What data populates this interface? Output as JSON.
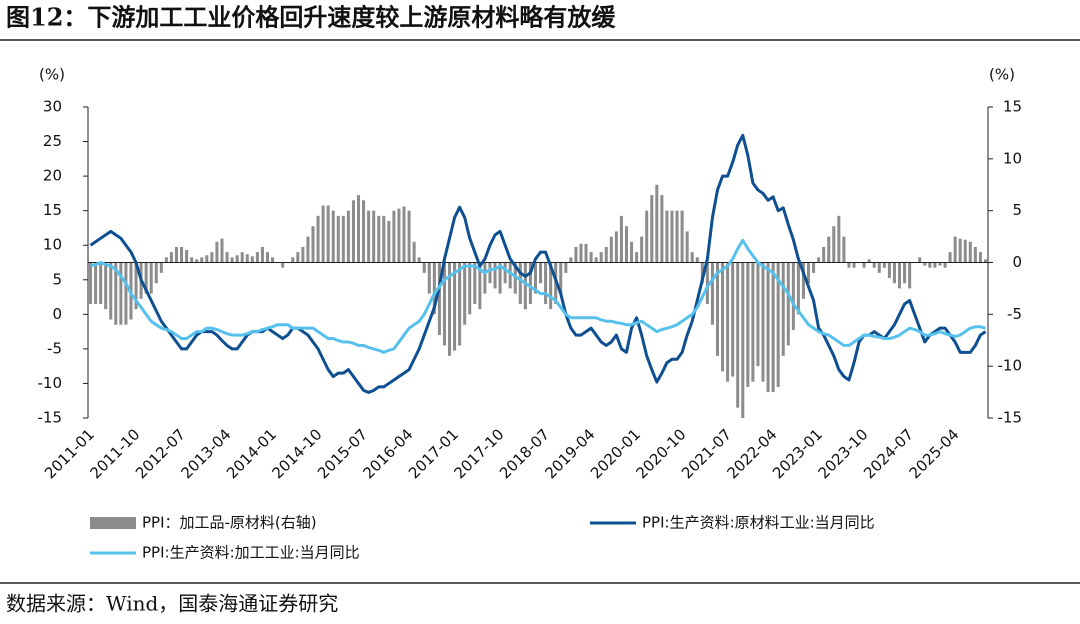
{
  "chart_data": {
    "type": "combo",
    "title": "图12：下游加工工业价格回升速度较上游原材料略有放缓",
    "ylabel": "(%)",
    "y2label": "(%)",
    "source": "数据来源：Wind，国泰海通证券研究",
    "categories": [
      "2011-01",
      null,
      null,
      null,
      null,
      null,
      null,
      null,
      null,
      "2011-10",
      null,
      null,
      null,
      null,
      null,
      null,
      null,
      null,
      "2012-07",
      null,
      null,
      null,
      null,
      null,
      null,
      null,
      null,
      "2013-04",
      null,
      null,
      null,
      null,
      null,
      null,
      null,
      null,
      "2014-01",
      null,
      null,
      null,
      null,
      null,
      null,
      null,
      null,
      "2014-10",
      null,
      null,
      null,
      null,
      null,
      null,
      null,
      null,
      "2015-07",
      null,
      null,
      null,
      null,
      null,
      null,
      null,
      null,
      "2016-04",
      null,
      null,
      null,
      null,
      null,
      null,
      null,
      null,
      "2017-01",
      null,
      null,
      null,
      null,
      null,
      null,
      null,
      null,
      "2017-10",
      null,
      null,
      null,
      null,
      null,
      null,
      null,
      null,
      "2018-07",
      null,
      null,
      null,
      null,
      null,
      null,
      null,
      null,
      "2019-04",
      null,
      null,
      null,
      null,
      null,
      null,
      null,
      null,
      "2020-01",
      null,
      null,
      null,
      null,
      null,
      null,
      null,
      null,
      "2020-10",
      null,
      null,
      null,
      null,
      null,
      null,
      null,
      null,
      "2021-07",
      null,
      null,
      null,
      null,
      null,
      null,
      null,
      null,
      "2022-04",
      null,
      null,
      null,
      null,
      null,
      null,
      null,
      null,
      "2023-01",
      null,
      null,
      null,
      null,
      null,
      null,
      null,
      null,
      "2023-10",
      null,
      null,
      null,
      null,
      null,
      null,
      null,
      null,
      "2024-07",
      null,
      null,
      null,
      null,
      null,
      null,
      null,
      null,
      "2025-04",
      null,
      null,
      null,
      null,
      null,
      null
    ],
    "ylim": [
      -15,
      30
    ],
    "yticks": [
      30,
      25,
      20,
      15,
      10,
      5,
      0,
      -5,
      -10,
      -15
    ],
    "y2lim": [
      -15,
      15
    ],
    "y2ticks": [
      15,
      10,
      5,
      0,
      -5,
      -10,
      -15
    ],
    "legend": "bottom",
    "series": [
      {
        "name": "PPI：加工品-原材料(右轴)",
        "type": "bar",
        "axis": "y2",
        "color": "#8c8c8c",
        "values": [
          -4,
          -4,
          -4,
          -4.5,
          -5.5,
          -6,
          -6,
          -6,
          -5.5,
          -4.5,
          -3.5,
          -3,
          -3,
          -2,
          -1,
          0.5,
          1,
          1.5,
          1.5,
          1.2,
          0.5,
          0.3,
          0.5,
          0.7,
          1,
          2,
          2.3,
          1,
          0.5,
          0.7,
          1,
          0.8,
          0.6,
          1,
          1.5,
          1,
          0.5,
          0,
          -0.5,
          0,
          0.5,
          1,
          1.5,
          2.5,
          3.5,
          4.5,
          5.5,
          5.5,
          5,
          4.5,
          4.5,
          5,
          6,
          6.5,
          6,
          5,
          5,
          4.5,
          4.5,
          4,
          5,
          5.2,
          5.4,
          5,
          2,
          0.5,
          -1,
          -3,
          -5,
          -7,
          -8,
          -9,
          -8.5,
          -8,
          -6,
          -5,
          -4,
          -4.5,
          -3,
          -2,
          -2.5,
          -3,
          -2,
          -2.5,
          -3,
          -4,
          -4.5,
          -4,
          -3,
          -2,
          -4,
          -4.5,
          -4,
          -3,
          -1,
          0.5,
          1.5,
          1.8,
          1.8,
          1,
          0.5,
          1,
          1.5,
          2.5,
          3,
          4.5,
          3.5,
          2,
          1,
          2.5,
          5,
          6.5,
          7.5,
          6.5,
          5,
          5,
          5,
          5,
          3,
          1,
          0.5,
          -2,
          -4,
          -6,
          -9,
          -10.5,
          -11.5,
          -11,
          -14,
          -15,
          -12,
          -11.5,
          -10,
          -11.5,
          -12.5,
          -12.5,
          -12,
          -9,
          -8,
          -6.5,
          -5,
          -3.5,
          -2,
          -1,
          0.5,
          1.5,
          2.5,
          3.5,
          4.5,
          2.5,
          -0.5,
          -0.5,
          0,
          -0.5,
          0.3,
          -0.5,
          -1,
          -0.5,
          -1.5,
          -2,
          -2.5,
          -2,
          -2.5,
          0,
          0.5,
          -0.3,
          -0.5,
          -0.5,
          -0.3,
          -0.5,
          1,
          2.5,
          2.3,
          2.2,
          2,
          1.5,
          1,
          0.3
        ]
      },
      {
        "name": "PPI:生产资料:原材料工业:当月同比",
        "type": "line",
        "color": "#0d4f91",
        "values": [
          10,
          10.5,
          11,
          11.5,
          12,
          11.5,
          11,
          10,
          9,
          7.5,
          5,
          3.5,
          2,
          0.5,
          -1,
          -2,
          -3,
          -4,
          -5,
          -5,
          -4,
          -3,
          -2.5,
          -2.5,
          -2.5,
          -3,
          -3.8,
          -4.5,
          -5,
          -5,
          -4,
          -3,
          -2.5,
          -2.5,
          -2.5,
          -2,
          -2.5,
          -3,
          -3.5,
          -3,
          -2,
          -2,
          -2.5,
          -3,
          -4,
          -5,
          -6.5,
          -8,
          -9,
          -8.5,
          -8.5,
          -8,
          -9,
          -10,
          -11,
          -11.3,
          -11,
          -10.5,
          -10.5,
          -10,
          -9.5,
          -9,
          -8.5,
          -8,
          -6.5,
          -5,
          -3,
          -1,
          1,
          4,
          8,
          11,
          14,
          15.5,
          14,
          11,
          9,
          7,
          8,
          10,
          11.5,
          12,
          10,
          8,
          7,
          6,
          5.5,
          6,
          8,
          9,
          9,
          7,
          5,
          3,
          0,
          -2,
          -3,
          -3,
          -2.5,
          -2,
          -3,
          -4,
          -4.5,
          -4,
          -3,
          -5,
          -5.5,
          -2,
          -0.5,
          -3,
          -6,
          -8,
          -9.8,
          -8.5,
          -7,
          -6.5,
          -6.5,
          -5.5,
          -3,
          -1,
          2,
          5,
          8,
          14,
          18,
          20,
          20,
          22,
          24.5,
          25.9,
          23,
          19,
          18,
          17.5,
          16.5,
          17,
          15,
          15.4,
          13,
          10.8,
          8,
          6,
          4,
          2,
          -2,
          -3,
          -4.5,
          -6,
          -8,
          -9,
          -9.5,
          -7,
          -4,
          -3,
          -3,
          -2.5,
          -3,
          -3.5,
          -2.5,
          -1.5,
          0,
          1.5,
          2,
          0,
          -2,
          -4,
          -3,
          -2.5,
          -2,
          -2,
          -3,
          -4,
          -5.5,
          -5.5,
          -5.5,
          -4.5,
          -3,
          -2.5
        ]
      },
      {
        "name": "PPI:生产资料:加工工业:当月同比",
        "type": "line",
        "color": "#56c1ec",
        "values": [
          7,
          7.2,
          7.5,
          7.2,
          7,
          6.5,
          5.5,
          4.5,
          3,
          2,
          1,
          0,
          -1,
          -1.5,
          -2,
          -2.2,
          -2.5,
          -3,
          -3.5,
          -3.5,
          -3,
          -2.5,
          -2.5,
          -2,
          -2,
          -2.2,
          -2.5,
          -2.8,
          -3,
          -3,
          -3,
          -2.8,
          -2.5,
          -2.5,
          -2.2,
          -2,
          -1.8,
          -1.5,
          -1.5,
          -1.5,
          -2,
          -2,
          -2,
          -2,
          -2,
          -2.5,
          -3,
          -3.5,
          -3.5,
          -3.8,
          -4,
          -4,
          -4.2,
          -4.5,
          -4.5,
          -4.8,
          -5,
          -5.2,
          -5.5,
          -5.2,
          -5,
          -4,
          -3,
          -2,
          -1.5,
          -1,
          0,
          1.5,
          3,
          4,
          5,
          5.5,
          6,
          6.5,
          7,
          7,
          7,
          6.5,
          6,
          6.5,
          6.5,
          7,
          6.5,
          6,
          5.5,
          5,
          4.5,
          4,
          3.5,
          3,
          3,
          2.5,
          2,
          1,
          0,
          -0.5,
          -0.5,
          -0.5,
          -0.5,
          -0.5,
          -0.5,
          -0.8,
          -1,
          -1,
          -1.2,
          -1.3,
          -1.5,
          -1.5,
          -1.2,
          -1,
          -1.5,
          -2,
          -2.5,
          -2.2,
          -2,
          -1.8,
          -1.5,
          -1,
          -0.5,
          0,
          1,
          2.5,
          4,
          5,
          6,
          6.5,
          7,
          8,
          9.5,
          10.7,
          9.5,
          8.5,
          7.5,
          7,
          6.5,
          6,
          5,
          4,
          3,
          1.5,
          0.5,
          -0.5,
          -1.5,
          -2,
          -2.5,
          -2.8,
          -3,
          -3.5,
          -4,
          -4.5,
          -4.5,
          -4,
          -3.5,
          -3,
          -3,
          -3.2,
          -3.3,
          -3.5,
          -3.5,
          -3.3,
          -3,
          -2.5,
          -2,
          -2.2,
          -2.5,
          -3,
          -3,
          -2.8,
          -2.5,
          -2.8,
          -3,
          -3.2,
          -3,
          -2.5,
          -2,
          -1.8,
          -1.8,
          -2
        ]
      }
    ]
  }
}
